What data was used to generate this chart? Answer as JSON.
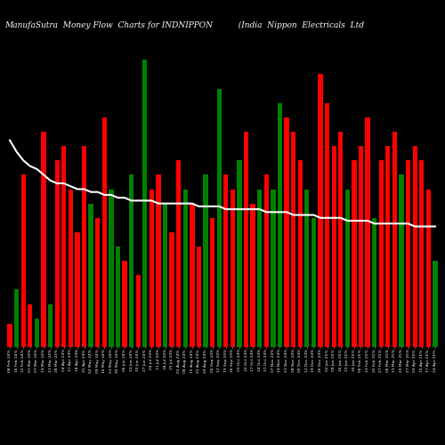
{
  "title": "ManufaSutra  Money Flow  Charts for INDNIPPON          (India  Nippon  Electricals  Ltd",
  "bg_color": "#000000",
  "bar_width": 0.7,
  "bar_colors": [
    "red",
    "green",
    "red",
    "red",
    "green",
    "red",
    "green",
    "red",
    "red",
    "red",
    "red",
    "red",
    "green",
    "red",
    "red",
    "green",
    "green",
    "red",
    "green",
    "red",
    "green",
    "red",
    "red",
    "green",
    "red",
    "red",
    "green",
    "red",
    "red",
    "green",
    "red",
    "green",
    "red",
    "red",
    "green",
    "red",
    "red",
    "green",
    "red",
    "green",
    "green",
    "red",
    "red",
    "red",
    "green",
    "green",
    "red",
    "red",
    "red",
    "red",
    "green",
    "red",
    "red",
    "red",
    "green",
    "red",
    "red",
    "red",
    "green",
    "red",
    "red",
    "red",
    "red",
    "green"
  ],
  "bar_values": [
    8,
    20,
    60,
    15,
    10,
    75,
    15,
    65,
    70,
    55,
    40,
    70,
    50,
    45,
    80,
    55,
    35,
    30,
    60,
    25,
    100,
    55,
    60,
    50,
    40,
    65,
    55,
    50,
    35,
    60,
    45,
    90,
    60,
    55,
    65,
    75,
    50,
    55,
    60,
    55,
    85,
    80,
    75,
    65,
    55,
    45,
    95,
    85,
    70,
    75,
    55,
    65,
    70,
    80,
    45,
    65,
    70,
    75,
    60,
    65,
    70,
    65,
    55,
    30
  ],
  "ma_values": [
    72,
    68,
    65,
    63,
    62,
    60,
    58,
    57,
    57,
    56,
    55,
    55,
    54,
    54,
    53,
    53,
    52,
    52,
    51,
    51,
    51,
    51,
    50,
    50,
    50,
    50,
    50,
    50,
    49,
    49,
    49,
    49,
    48,
    48,
    48,
    48,
    48,
    48,
    47,
    47,
    47,
    47,
    46,
    46,
    46,
    46,
    45,
    45,
    45,
    45,
    44,
    44,
    44,
    44,
    43,
    43,
    43,
    43,
    43,
    43,
    42,
    42,
    42,
    42
  ],
  "labels": [
    "08 Feb 24%",
    "16 Feb 24%",
    "22 Feb 24%",
    "01 Mar 24%",
    "07 Mar 24%",
    "14 Mar 24%",
    "21 Mar 24%",
    "28 Mar 24%",
    "04 Apr 24%",
    "11 Apr 24%",
    "18 Apr 24%",
    "25 Apr 24%",
    "02 May 24%",
    "09 May 24%",
    "16 May 24%",
    "23 May 24%",
    "30 May 24%",
    "06 Jun 24%",
    "13 Jun 24%",
    "20 Jun 24%",
    "27 Jun 24%",
    "04 Jul 24%",
    "11 Jul 24%",
    "18 Jul 24%",
    "25 Jul 24%",
    "01 Aug 24%",
    "08 Aug 24%",
    "15 Aug 24%",
    "22 Aug 24%",
    "29 Aug 24%",
    "05 Sep 24%",
    "12 Sep 24%",
    "19 Sep 24%",
    "26 Sep 24%",
    "03 Oct 24%",
    "10 Oct 24%",
    "17 Oct 24%",
    "24 Oct 24%",
    "31 Oct 24%",
    "07 Nov 24%",
    "14 Nov 24%",
    "21 Nov 24%",
    "28 Nov 24%",
    "05 Dec 24%",
    "12 Dec 24%",
    "19 Dec 24%",
    "26 Dec 24%",
    "02 Jan 25%",
    "09 Jan 25%",
    "16 Jan 25%",
    "23 Jan 25%",
    "30 Jan 25%",
    "06 Feb 25%",
    "13 Feb 25%",
    "20 Feb 25%",
    "27 Feb 25%",
    "06 Mar 25%",
    "13 Mar 25%",
    "20 Mar 25%",
    "27 Mar 25%",
    "03 Apr 25%",
    "10 Apr 25%",
    "17 Apr 25%",
    "24 Apr 25%"
  ],
  "ylim": [
    0,
    110
  ],
  "title_color": "#ffffff",
  "title_fontsize": 6.5,
  "label_fontsize": 3.2,
  "ma_color": "#ffffff",
  "ma_linewidth": 1.5,
  "figsize": [
    5.0,
    5.0
  ],
  "dpi": 100
}
